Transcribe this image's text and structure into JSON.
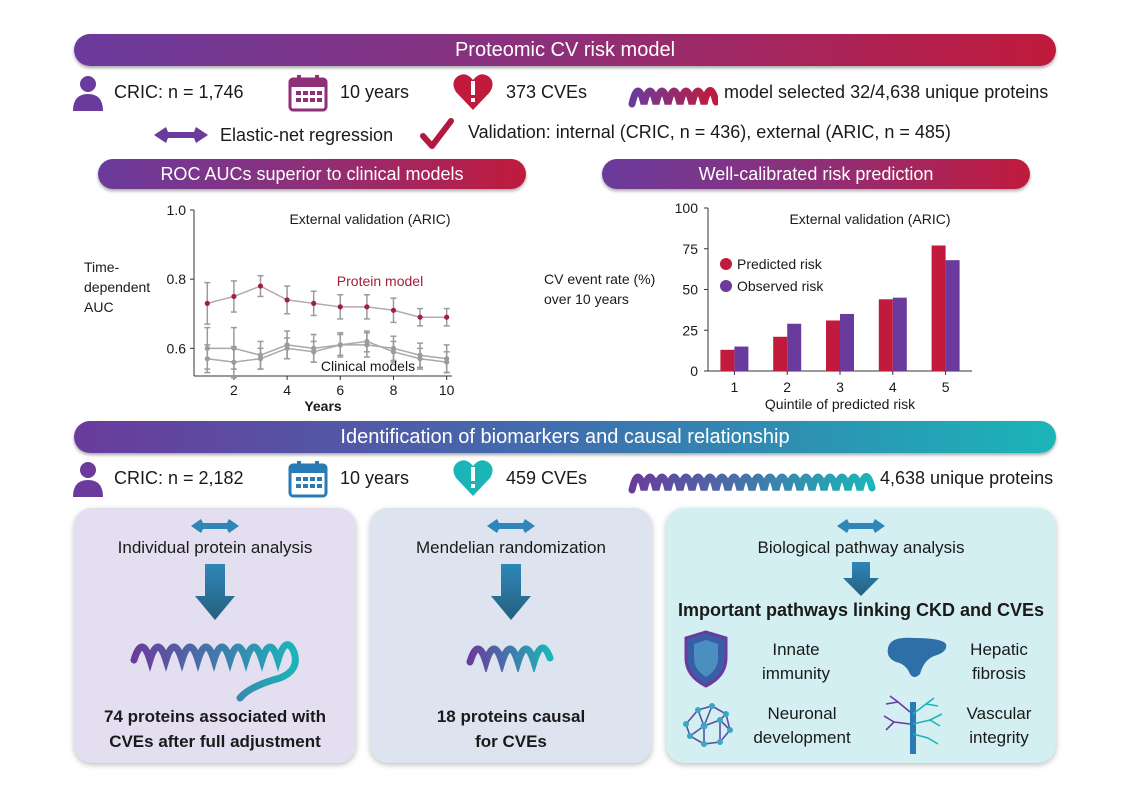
{
  "colors": {
    "purple": "#6a3b9c",
    "red": "#c11a3c",
    "teal": "#1bb5b8",
    "gray": "#9b9b9b",
    "dark_red": "#a3203a"
  },
  "header": {
    "title": "Proteomic CV risk model"
  },
  "model_stats": {
    "cohort": "CRIC: n = 1,746",
    "followup": "10 years",
    "events": "373 CVEs",
    "proteins": "model selected 32/4,638 unique proteins",
    "method": "Elastic-net regression",
    "validation": "Validation: internal (CRIC, n = 436), external (ARIC, n = 485)"
  },
  "roc": {
    "banner": "ROC AUCs superior to clinical models"
  },
  "calib": {
    "banner": "Well-calibrated risk prediction"
  },
  "chart_data": [
    {
      "type": "line",
      "title": "External validation (ARIC)",
      "xlabel": "Years",
      "ylabel": "Time-dependent AUC",
      "ylabel_lines": [
        "Time-",
        "dependent",
        "AUC"
      ],
      "x": [
        1,
        2,
        3,
        4,
        5,
        6,
        7,
        8,
        9,
        10
      ],
      "xticks": [
        2,
        4,
        6,
        8,
        10
      ],
      "yticks": [
        "1.0",
        "0.8",
        "0.6"
      ],
      "ylim": [
        0.52,
        1.0
      ],
      "series": [
        {
          "name": "Protein model",
          "values": [
            0.73,
            0.75,
            0.78,
            0.74,
            0.73,
            0.72,
            0.72,
            0.71,
            0.69,
            0.69
          ],
          "err": [
            0.06,
            0.045,
            0.03,
            0.04,
            0.035,
            0.035,
            0.035,
            0.035,
            0.025,
            0.025
          ]
        },
        {
          "name": "Clinical models",
          "values": [
            0.6,
            0.6,
            0.58,
            0.61,
            0.6,
            0.61,
            0.61,
            0.6,
            0.58,
            0.57
          ],
          "err": [
            0.06,
            0.06,
            0.04,
            0.04,
            0.04,
            0.035,
            0.035,
            0.035,
            0.035,
            0.04
          ]
        },
        {
          "name": "Clinical models",
          "values": [
            0.57,
            0.56,
            0.57,
            0.6,
            0.59,
            0.61,
            0.62,
            0.59,
            0.57,
            0.56
          ],
          "err": [
            0.04,
            0.045,
            0.03,
            0.03,
            0.03,
            0.03,
            0.03,
            0.03,
            0.03,
            0.03
          ]
        }
      ],
      "labels": {
        "protein": "Protein model",
        "clinical": "Clinical models"
      }
    },
    {
      "type": "bar",
      "title": "External validation (ARIC)",
      "xlabel": "Quintile of predicted risk",
      "ylabel": "CV event rate (%) over 10 years",
      "ylabel_lines": [
        "CV event rate (%)",
        "over 10 years"
      ],
      "categories": [
        "1",
        "2",
        "3",
        "4",
        "5"
      ],
      "yticks": [
        "100",
        "75",
        "50",
        "25",
        "0"
      ],
      "ylim": [
        0,
        100
      ],
      "series": [
        {
          "name": "Predicted risk",
          "values": [
            13,
            21,
            31,
            44,
            77
          ]
        },
        {
          "name": "Observed risk",
          "values": [
            15,
            29,
            35,
            45,
            68
          ]
        }
      ]
    }
  ],
  "biomarkers": {
    "banner": "Identification of biomarkers and causal relationship",
    "cohort": "CRIC: n = 2,182",
    "followup": "10 years",
    "events": "459 CVEs",
    "proteins": "4,638 unique proteins"
  },
  "panels": [
    {
      "title": "Individual protein analysis",
      "result_line1": "74 proteins associated with",
      "result_line2": "CVEs after full adjustment"
    },
    {
      "title": "Mendelian randomization",
      "result_line1": "18 proteins causal",
      "result_line2": "for CVEs"
    },
    {
      "title": "Biological pathway analysis",
      "subtitle": "Important pathways linking CKD and CVEs",
      "pathways": [
        {
          "line1": "Innate",
          "line2": "immunity"
        },
        {
          "line1": "Hepatic",
          "line2": "fibrosis"
        },
        {
          "line1": "Neuronal",
          "line2": "development"
        },
        {
          "line1": "Vascular",
          "line2": "integrity"
        }
      ]
    }
  ]
}
